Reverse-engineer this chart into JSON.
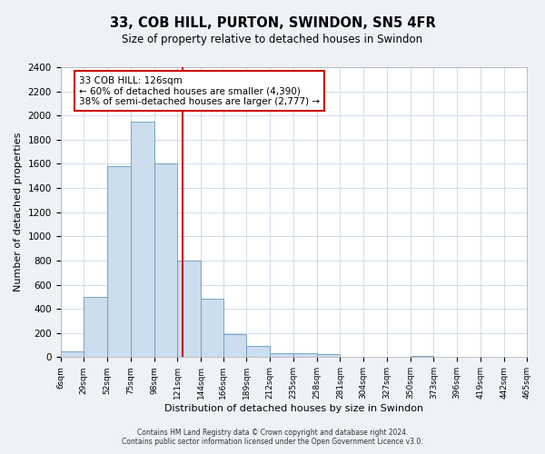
{
  "title": "33, COB HILL, PURTON, SWINDON, SN5 4FR",
  "subtitle": "Size of property relative to detached houses in Swindon",
  "xlabel": "Distribution of detached houses by size in Swindon",
  "ylabel": "Number of detached properties",
  "bin_labels": [
    "6sqm",
    "29sqm",
    "52sqm",
    "75sqm",
    "98sqm",
    "121sqm",
    "144sqm",
    "166sqm",
    "189sqm",
    "212sqm",
    "235sqm",
    "258sqm",
    "281sqm",
    "304sqm",
    "327sqm",
    "350sqm",
    "373sqm",
    "396sqm",
    "419sqm",
    "442sqm",
    "465sqm"
  ],
  "bin_edges": [
    6,
    29,
    52,
    75,
    98,
    121,
    144,
    166,
    189,
    212,
    235,
    258,
    281,
    304,
    327,
    350,
    373,
    396,
    419,
    442,
    465
  ],
  "bar_heights": [
    50,
    500,
    1580,
    1950,
    1600,
    800,
    480,
    190,
    90,
    35,
    30,
    25,
    0,
    0,
    0,
    10,
    0,
    0,
    0,
    0
  ],
  "bar_color": "#ccdded",
  "bar_edge_color": "#6699bb",
  "vline_x": 126,
  "vline_color": "#cc0000",
  "ylim": [
    0,
    2400
  ],
  "yticks": [
    0,
    200,
    400,
    600,
    800,
    1000,
    1200,
    1400,
    1600,
    1800,
    2000,
    2200,
    2400
  ],
  "annotation_title": "33 COB HILL: 126sqm",
  "annotation_line1": "← 60% of detached houses are smaller (4,390)",
  "annotation_line2": "38% of semi-detached houses are larger (2,777) →",
  "annotation_box_color": "#ffffff",
  "annotation_box_edge": "#cc0000",
  "footer_line1": "Contains HM Land Registry data © Crown copyright and database right 2024.",
  "footer_line2": "Contains public sector information licensed under the Open Government Licence v3.0.",
  "bg_color": "#eef2f7",
  "plot_bg_color": "#ffffff",
  "grid_color": "#c8d8e8"
}
